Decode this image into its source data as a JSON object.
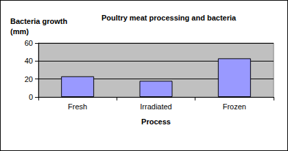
{
  "chart_data": {
    "type": "bar",
    "title": "Poultry meat processing and bacteria",
    "x_label": "Process",
    "y_label": "Bacteria growth (mm)",
    "categories": [
      "Fresh",
      "Irradiated",
      "Frozen"
    ],
    "values": [
      23,
      18,
      43
    ],
    "color": "#9999ff",
    "ylim": [
      0,
      60
    ],
    "yticks": [
      0,
      20,
      40,
      60
    ],
    "grid": true
  }
}
